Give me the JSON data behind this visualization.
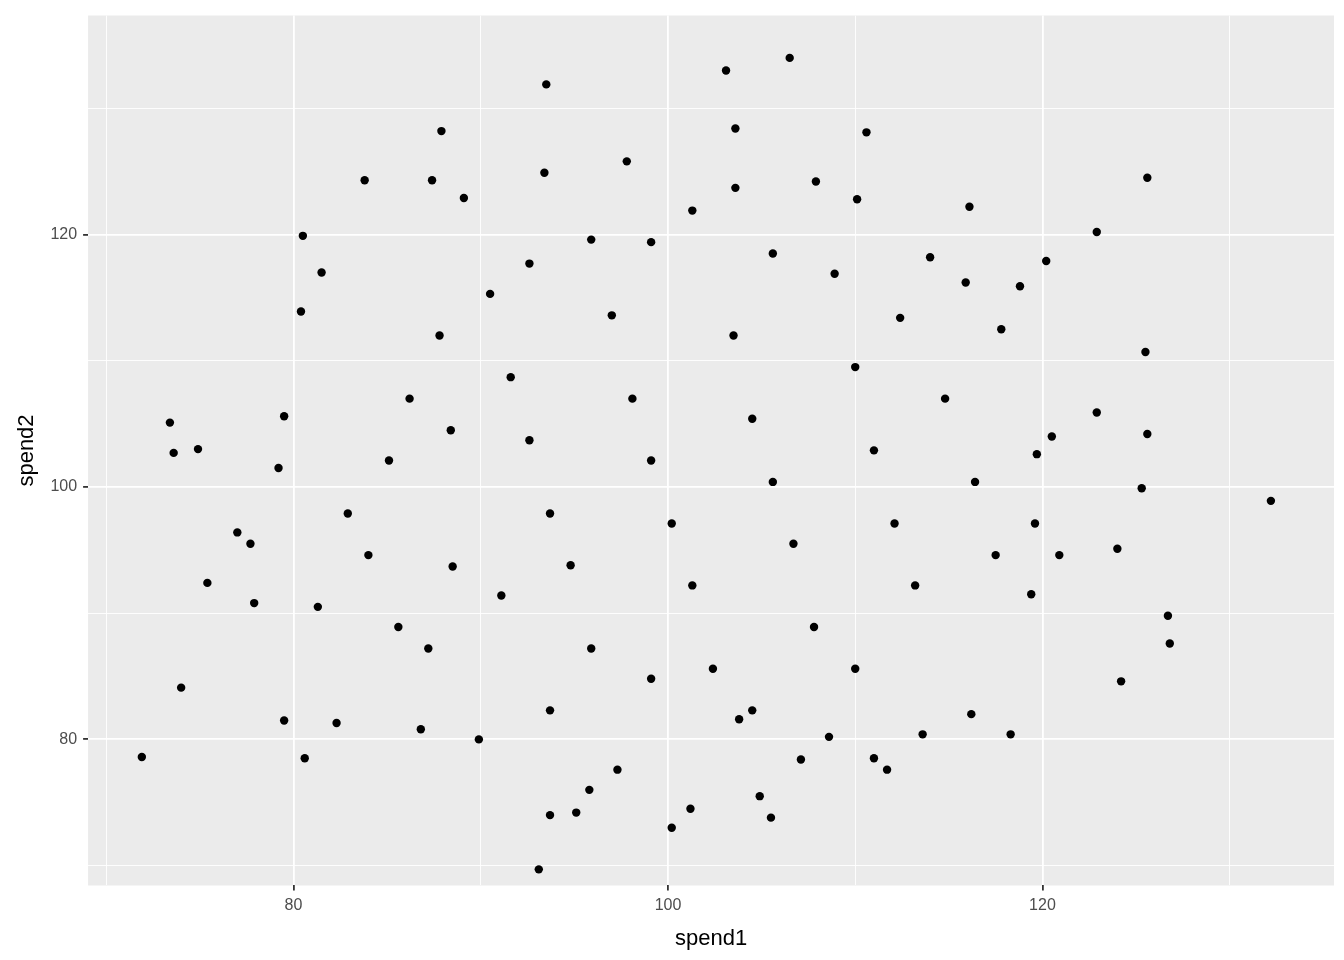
{
  "chart_data": {
    "type": "scatter",
    "xlabel": "spend1",
    "ylabel": "spend2",
    "grid": true,
    "legend": false,
    "marker": "circle",
    "xlim": [
      69.03,
      135.57
    ],
    "ylim": [
      68.43,
      137.35
    ],
    "xticks": [
      {
        "value": 70,
        "label": null
      },
      80,
      {
        "value": 90,
        "label": null
      },
      100,
      {
        "value": 110,
        "label": null
      },
      120,
      {
        "value": 130,
        "label": null
      }
    ],
    "yticks": [
      {
        "value": 70,
        "label": null
      },
      80,
      {
        "value": 90,
        "label": null
      },
      100,
      {
        "value": 110,
        "label": null
      },
      120,
      {
        "value": 130,
        "label": null
      }
    ],
    "series": [
      {
        "color": "#000000",
        "x": [
          71.9,
          73.4,
          73.6,
          74.0,
          74.9,
          75.4,
          77.0,
          77.7,
          77.9,
          79.2,
          79.5,
          79.5,
          80.5,
          80.4,
          80.6,
          81.5,
          82.3,
          83.8,
          87.4,
          87.9,
          89.1,
          93.5,
          93.4,
          93.1,
          93.7,
          97.8,
          103.1,
          103.6,
          103.6,
          106.5,
          107.9,
          110.6,
          110.1,
          100.2,
          101.2,
          105.5,
          104.9,
          116.1,
          120.2,
          122.9,
          125.6,
          132.2,
          126.7,
          126.8,
          124.2,
          118.3,
          125.5,
          125.6,
          124.0,
          119.4,
          111.0,
          111.7,
          113.6,
          107.1,
          108.6,
          116.2,
          103.8,
          95.1,
          95.8,
          97.3,
          89.9,
          86.8,
          91.1,
          88.5,
          125.3,
          122.9,
          120.5,
          119.6,
          120.9,
          119.7,
          117.8,
          115.9,
          114.0,
          112.4,
          118.8,
          85.1,
          86.2,
          82.9,
          84.0,
          85.6,
          87.8,
          90.5,
          91.6,
          92.6,
          93.7,
          94.8,
          95.9,
          97.0,
          98.1,
          99.1,
          100.2,
          101.3,
          102.4,
          103.5,
          104.5,
          105.6,
          106.7,
          107.8,
          108.9,
          110.0,
          111.0,
          112.1,
          113.2,
          114.8,
          116.4,
          117.5,
          99.1,
          101.3,
          95.9,
          105.6,
          93.7,
          99.1,
          104.5,
          110.0,
          92.6,
          88.4,
          81.3,
          87.2
        ],
        "values": [
          78.6,
          105.1,
          102.7,
          84.1,
          103.0,
          92.4,
          96.4,
          95.5,
          90.8,
          101.5,
          105.6,
          81.5,
          119.9,
          113.9,
          78.5,
          117.0,
          81.3,
          124.3,
          124.3,
          128.2,
          122.9,
          131.9,
          124.9,
          69.7,
          74.0,
          125.8,
          133.0,
          128.4,
          123.7,
          134.0,
          124.2,
          128.1,
          122.8,
          73.0,
          74.5,
          73.8,
          75.5,
          122.2,
          117.9,
          120.2,
          124.5,
          98.9,
          89.8,
          87.6,
          84.6,
          80.4,
          110.7,
          104.2,
          95.1,
          91.5,
          78.5,
          77.6,
          80.4,
          78.4,
          80.2,
          82.0,
          81.6,
          74.2,
          76.0,
          77.6,
          80.0,
          80.8,
          91.4,
          93.7,
          99.9,
          105.9,
          104.0,
          97.1,
          94.6,
          102.6,
          112.5,
          116.2,
          118.2,
          113.4,
          115.9,
          102.1,
          107.0,
          97.9,
          94.6,
          88.9,
          112.0,
          115.3,
          108.7,
          103.7,
          97.9,
          93.8,
          87.2,
          113.6,
          107.0,
          102.1,
          97.1,
          92.2,
          85.6,
          112.0,
          105.4,
          100.4,
          95.5,
          88.9,
          116.9,
          109.5,
          102.9,
          97.1,
          92.2,
          107.0,
          100.4,
          94.6,
          119.4,
          121.9,
          119.6,
          118.5,
          82.3,
          84.8,
          82.3,
          85.6,
          117.7,
          104.5,
          90.5,
          87.2
        ]
      }
    ]
  }
}
